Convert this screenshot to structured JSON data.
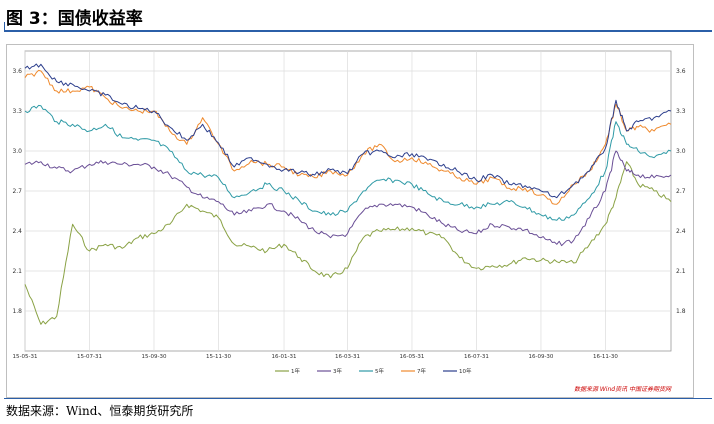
{
  "page": {
    "title": "图 3：国债收益率",
    "source": "数据来源：Wind、恒泰期货研究所",
    "watermark": "数据来源 Wind资讯 中国证券期货网"
  },
  "chart_data": {
    "type": "line",
    "title": "",
    "xlabel": "",
    "ylabel": "",
    "ylim": [
      1.5,
      3.75
    ],
    "yticks": [
      1.8,
      2.1,
      2.4,
      2.7,
      3.0,
      3.3,
      3.6
    ],
    "ytick_labels": [
      "1.8",
      "2.1",
      "2.4",
      "2.7",
      "3.0",
      "3.3",
      "3.6"
    ],
    "x_range": [
      "2015-05-31",
      "2017-01-31"
    ],
    "xticks": [
      "2015-05-31",
      "2015-07-31",
      "2015-09-30",
      "2015-11-30",
      "2016-01-31",
      "2016-03-31",
      "2016-05-31",
      "2016-07-31",
      "2016-09-30",
      "2016-11-30"
    ],
    "xtick_labels": [
      "15-05-31",
      "15-07-31",
      "15-09-30",
      "15-11-30",
      "16-01-31",
      "16-03-31",
      "16-05-31",
      "16-07-31",
      "16-09-30",
      "16-11-30"
    ],
    "grid": true,
    "legend_position": "bottom",
    "x": [
      "2015-05-31",
      "2015-06-15",
      "2015-06-30",
      "2015-07-15",
      "2015-07-31",
      "2015-08-15",
      "2015-08-31",
      "2015-09-15",
      "2015-09-30",
      "2015-10-15",
      "2015-10-31",
      "2015-11-15",
      "2015-11-30",
      "2015-12-15",
      "2015-12-31",
      "2016-01-15",
      "2016-01-31",
      "2016-02-15",
      "2016-02-29",
      "2016-03-15",
      "2016-03-31",
      "2016-04-15",
      "2016-04-30",
      "2016-05-15",
      "2016-05-31",
      "2016-06-15",
      "2016-06-30",
      "2016-07-15",
      "2016-07-31",
      "2016-08-15",
      "2016-08-31",
      "2016-09-15",
      "2016-09-30",
      "2016-10-15",
      "2016-10-31",
      "2016-11-15",
      "2016-11-30",
      "2016-12-10",
      "2016-12-20",
      "2016-12-31",
      "2017-01-15",
      "2017-01-31"
    ],
    "series": [
      {
        "name": "1年",
        "color": "#8aa245",
        "values": [
          2.0,
          1.7,
          1.76,
          2.45,
          2.25,
          2.3,
          2.27,
          2.35,
          2.38,
          2.45,
          2.6,
          2.55,
          2.5,
          2.3,
          2.28,
          2.25,
          2.3,
          2.2,
          2.1,
          2.05,
          2.12,
          2.35,
          2.4,
          2.41,
          2.42,
          2.38,
          2.35,
          2.2,
          2.12,
          2.14,
          2.15,
          2.2,
          2.18,
          2.17,
          2.16,
          2.3,
          2.45,
          2.65,
          2.92,
          2.75,
          2.7,
          2.62
        ]
      },
      {
        "name": "3年",
        "color": "#6a4f96",
        "values": [
          2.9,
          2.92,
          2.87,
          2.85,
          2.9,
          2.92,
          2.9,
          2.9,
          2.88,
          2.82,
          2.73,
          2.65,
          2.62,
          2.52,
          2.55,
          2.6,
          2.55,
          2.48,
          2.4,
          2.35,
          2.38,
          2.55,
          2.6,
          2.6,
          2.58,
          2.52,
          2.45,
          2.4,
          2.38,
          2.45,
          2.43,
          2.41,
          2.35,
          2.3,
          2.33,
          2.5,
          2.7,
          3.0,
          2.85,
          2.82,
          2.8,
          2.82
        ]
      },
      {
        "name": "5年",
        "color": "#2f9aa6",
        "values": [
          3.3,
          3.34,
          3.22,
          3.2,
          3.15,
          3.2,
          3.1,
          3.08,
          3.08,
          3.0,
          2.85,
          2.82,
          2.8,
          2.65,
          2.7,
          2.75,
          2.7,
          2.62,
          2.55,
          2.52,
          2.55,
          2.7,
          2.78,
          2.78,
          2.75,
          2.68,
          2.62,
          2.6,
          2.58,
          2.6,
          2.62,
          2.58,
          2.52,
          2.48,
          2.52,
          2.65,
          2.85,
          3.22,
          3.05,
          3.0,
          2.95,
          3.0
        ]
      },
      {
        "name": "7年",
        "color": "#ef8a2e",
        "values": [
          3.55,
          3.6,
          3.45,
          3.45,
          3.48,
          3.4,
          3.32,
          3.3,
          3.3,
          3.15,
          3.05,
          3.25,
          3.05,
          2.85,
          2.93,
          2.9,
          2.88,
          2.82,
          2.8,
          2.85,
          2.82,
          2.98,
          3.05,
          2.92,
          2.95,
          2.9,
          2.85,
          2.8,
          2.75,
          2.8,
          2.72,
          2.72,
          2.67,
          2.6,
          2.75,
          2.85,
          3.05,
          3.35,
          3.15,
          3.18,
          3.15,
          3.2
        ]
      },
      {
        "name": "10年",
        "color": "#2c3e8c",
        "values": [
          3.62,
          3.65,
          3.52,
          3.5,
          3.45,
          3.42,
          3.35,
          3.32,
          3.3,
          3.18,
          3.08,
          3.2,
          3.06,
          2.88,
          2.95,
          2.9,
          2.86,
          2.84,
          2.82,
          2.86,
          2.83,
          2.98,
          3.0,
          2.95,
          2.98,
          2.93,
          2.9,
          2.84,
          2.78,
          2.82,
          2.75,
          2.74,
          2.7,
          2.65,
          2.75,
          2.85,
          3.02,
          3.38,
          3.15,
          3.22,
          3.25,
          3.3
        ]
      }
    ]
  }
}
